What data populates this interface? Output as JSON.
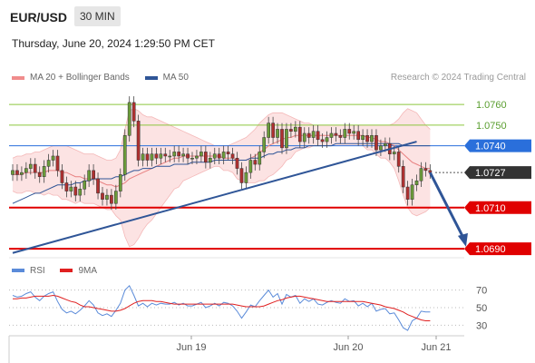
{
  "header": {
    "pair": "EUR/USD",
    "timeframe": "30 MIN",
    "timestamp": "Thursday, June 20, 2024 1:29:50 PM CET"
  },
  "legend": {
    "ma20_label": "MA 20 + Bollinger Bands",
    "ma50_label": "MA 50",
    "ma20_color": "#f08c8c",
    "ma50_color": "#2f5597",
    "credit": "Research © 2024 Trading Central",
    "rsi_label": "RSI",
    "ma9_label": "9MA",
    "rsi_color": "#5b8bd9",
    "ma9_color": "#e02020"
  },
  "chart_data": {
    "type": "line",
    "instrument": "EUR/USD",
    "timeframe": "30 MIN",
    "price_axis": {
      "ylim": [
        1.0687,
        1.0768
      ]
    },
    "levels": [
      {
        "value": 1.076,
        "label": "1.0760",
        "kind": "resistance",
        "color": "#8cc63f"
      },
      {
        "value": 1.075,
        "label": "1.0750",
        "kind": "resistance",
        "color": "#8cc63f"
      },
      {
        "value": 1.074,
        "label": "1.0740",
        "kind": "pivot",
        "color": "#2a6fdb"
      },
      {
        "value": 1.0727,
        "label": "1.0727",
        "kind": "last",
        "color": "#333333"
      },
      {
        "value": 1.071,
        "label": "1.0710",
        "kind": "support",
        "color": "#e00000"
      },
      {
        "value": 1.069,
        "label": "1.0690",
        "kind": "support",
        "color": "#e00000"
      }
    ],
    "x_labels": [
      "Jun 19",
      "Jun 20",
      "Jun 21"
    ],
    "close_series": [
      1.0728,
      1.0726,
      1.0727,
      1.0729,
      1.0731,
      1.0727,
      1.0725,
      1.073,
      1.0733,
      1.0735,
      1.0728,
      1.0722,
      1.0718,
      1.072,
      1.0716,
      1.0719,
      1.0723,
      1.0728,
      1.0724,
      1.0717,
      1.0714,
      1.0716,
      1.0712,
      1.0718,
      1.0726,
      1.0745,
      1.0761,
      1.0752,
      1.0733,
      1.0736,
      1.0733,
      1.0736,
      1.0734,
      1.0736,
      1.0735,
      1.0735,
      1.0737,
      1.0735,
      1.0736,
      1.0734,
      1.0734,
      1.0735,
      1.0737,
      1.0732,
      1.0734,
      1.0736,
      1.0734,
      1.0737,
      1.0736,
      1.0734,
      1.0729,
      1.0722,
      1.0727,
      1.0733,
      1.0731,
      1.0737,
      1.0744,
      1.0751,
      1.0744,
      1.0748,
      1.0739,
      1.0748,
      1.0747,
      1.0749,
      1.0742,
      1.0746,
      1.0744,
      1.0747,
      1.0743,
      1.0742,
      1.0744,
      1.0746,
      1.0745,
      1.0744,
      1.0748,
      1.0746,
      1.0747,
      1.0743,
      1.0745,
      1.0742,
      1.0745,
      1.0738,
      1.074,
      1.0741,
      1.0736,
      1.0737,
      1.073,
      1.072,
      1.0714,
      1.0721,
      1.0723,
      1.0729,
      1.0728,
      1.0727
    ],
    "ma20": [
      1.0726,
      1.0726,
      1.0726,
      1.0727,
      1.0727,
      1.0727,
      1.0727,
      1.0727,
      1.0728,
      1.0728,
      1.0728,
      1.0727,
      1.0727,
      1.0726,
      1.0725,
      1.0725,
      1.0724,
      1.0724,
      1.0724,
      1.0723,
      1.0722,
      1.0721,
      1.0721,
      1.072,
      1.0721,
      1.0722,
      1.0724,
      1.0725,
      1.0726,
      1.0727,
      1.0728,
      1.0729,
      1.073,
      1.0731,
      1.0732,
      1.0733,
      1.0734,
      1.0734,
      1.0735,
      1.0735,
      1.0735,
      1.0735,
      1.0735,
      1.0735,
      1.0735,
      1.0735,
      1.0735,
      1.0734,
      1.0734,
      1.0734,
      1.0733,
      1.0733,
      1.0733,
      1.0734,
      1.0735,
      1.0737,
      1.0738,
      1.074,
      1.0741,
      1.0742,
      1.0743,
      1.0744,
      1.0744,
      1.0745,
      1.0745,
      1.0745,
      1.0745,
      1.0745,
      1.0745,
      1.0745,
      1.0745,
      1.0745,
      1.0745,
      1.0745,
      1.0745,
      1.0745,
      1.0745,
      1.0745,
      1.0745,
      1.0744,
      1.0744,
      1.0743,
      1.0742,
      1.0742,
      1.0741,
      1.074,
      1.0738,
      1.0736,
      1.0734,
      1.0732,
      1.0731,
      1.073,
      1.0729,
      1.0729
    ],
    "bb_upper": [
      1.0734,
      1.0735,
      1.0735,
      1.0736,
      1.0736,
      1.0737,
      1.0737,
      1.0738,
      1.0739,
      1.074,
      1.074,
      1.074,
      1.074,
      1.0739,
      1.0738,
      1.0737,
      1.0736,
      1.0736,
      1.0736,
      1.0735,
      1.0734,
      1.0733,
      1.0733,
      1.0734,
      1.0738,
      1.0748,
      1.0757,
      1.0758,
      1.0757,
      1.0755,
      1.0754,
      1.0754,
      1.0753,
      1.0752,
      1.0751,
      1.075,
      1.0749,
      1.0748,
      1.0747,
      1.0746,
      1.0745,
      1.0744,
      1.0743,
      1.0742,
      1.0741,
      1.074,
      1.074,
      1.074,
      1.074,
      1.0741,
      1.0742,
      1.0743,
      1.0744,
      1.0746,
      1.0748,
      1.0751,
      1.0753,
      1.0755,
      1.0756,
      1.0756,
      1.0756,
      1.0755,
      1.0754,
      1.0753,
      1.0752,
      1.0751,
      1.0751,
      1.075,
      1.075,
      1.075,
      1.075,
      1.075,
      1.075,
      1.075,
      1.075,
      1.075,
      1.075,
      1.075,
      1.075,
      1.075,
      1.075,
      1.075,
      1.075,
      1.075,
      1.075,
      1.0751,
      1.0753,
      1.0756,
      1.0758,
      1.0757,
      1.0756,
      1.0753,
      1.075,
      1.0748
    ],
    "bb_lower": [
      1.0718,
      1.0717,
      1.0717,
      1.0718,
      1.0718,
      1.0717,
      1.0717,
      1.0716,
      1.0717,
      1.0716,
      1.0716,
      1.0714,
      1.0714,
      1.0713,
      1.0712,
      1.0713,
      1.0712,
      1.0712,
      1.0712,
      1.0711,
      1.071,
      1.0709,
      1.0709,
      1.0706,
      1.0704,
      1.0696,
      1.0691,
      1.0692,
      1.0695,
      1.0699,
      1.0702,
      1.0704,
      1.0707,
      1.071,
      1.0713,
      1.0716,
      1.0719,
      1.072,
      1.0723,
      1.0724,
      1.0725,
      1.0726,
      1.0727,
      1.0728,
      1.0729,
      1.073,
      1.073,
      1.0728,
      1.0728,
      1.0727,
      1.0724,
      1.0723,
      1.0722,
      1.0722,
      1.0722,
      1.0723,
      1.0723,
      1.0725,
      1.0726,
      1.0728,
      1.073,
      1.0733,
      1.0734,
      1.0737,
      1.0738,
      1.0739,
      1.0739,
      1.074,
      1.074,
      1.074,
      1.074,
      1.074,
      1.074,
      1.074,
      1.074,
      1.074,
      1.074,
      1.074,
      1.074,
      1.0738,
      1.0738,
      1.0736,
      1.0734,
      1.0734,
      1.0732,
      1.0729,
      1.0723,
      1.0716,
      1.071,
      1.0707,
      1.0706,
      1.0707,
      1.0708,
      1.071
    ],
    "ma50": [
      1.0712,
      1.0713,
      1.0714,
      1.0715,
      1.0716,
      1.0717,
      1.0717,
      1.0718,
      1.0719,
      1.072,
      1.0721,
      1.0721,
      1.0721,
      1.0721,
      1.0722,
      1.0722,
      1.0723,
      1.0723,
      1.0724,
      1.0724,
      1.0724,
      1.0724,
      1.0724,
      1.0725,
      1.0725,
      1.0726,
      1.0727,
      1.0728,
      1.0728,
      1.0729,
      1.0729,
      1.0729,
      1.073,
      1.073,
      1.073,
      1.073,
      1.0731,
      1.0731,
      1.0731,
      1.0731,
      1.0732,
      1.0732,
      1.0732,
      1.0732,
      1.0732,
      1.0733,
      1.0733,
      1.0733,
      1.0733,
      1.0733,
      1.0733,
      1.0733,
      1.0733,
      1.0734,
      1.0734,
      1.0734,
      1.0735,
      1.0736,
      1.0736,
      1.0737,
      1.0737,
      1.0738,
      1.0738,
      1.0739,
      1.0739,
      1.0739,
      1.074,
      1.074,
      1.074,
      1.074,
      1.074,
      1.074,
      1.0741,
      1.0741,
      1.0741,
      1.0741,
      1.0741,
      1.0741,
      1.0741,
      1.0741,
      1.0741,
      1.0741,
      1.0741,
      1.0741,
      1.0741,
      1.0741,
      1.0741,
      1.074,
      1.074,
      1.074,
      1.074,
      1.074,
      1.074,
      1.074
    ],
    "trendline": {
      "from": {
        "index": 0,
        "value": 1.0688
      },
      "to": {
        "index": 90,
        "value": 1.0742
      }
    },
    "forecast_arrow": {
      "from": {
        "index": 93,
        "value": 1.0727
      },
      "to": {
        "index": 101,
        "value": 1.0691
      }
    },
    "rsi_panel": {
      "ylim": [
        20,
        80
      ],
      "levels": [
        70,
        50,
        30
      ],
      "rsi": [
        64,
        62,
        63,
        66,
        68,
        62,
        58,
        63,
        66,
        68,
        57,
        48,
        44,
        46,
        43,
        47,
        52,
        58,
        53,
        44,
        41,
        43,
        40,
        47,
        55,
        70,
        75,
        64,
        52,
        55,
        51,
        55,
        53,
        55,
        54,
        54,
        56,
        53,
        55,
        52,
        52,
        54,
        56,
        50,
        52,
        55,
        52,
        56,
        55,
        52,
        46,
        38,
        45,
        53,
        51,
        58,
        64,
        70,
        62,
        66,
        54,
        65,
        62,
        64,
        55,
        60,
        57,
        60,
        54,
        53,
        56,
        58,
        56,
        55,
        60,
        57,
        58,
        52,
        55,
        51,
        55,
        46,
        48,
        49,
        43,
        44,
        36,
        27,
        24,
        35,
        38,
        46,
        45,
        45
      ],
      "ma9": [
        60,
        60,
        61,
        61,
        62,
        63,
        63,
        63,
        63,
        64,
        63,
        61,
        59,
        57,
        56,
        53,
        51,
        51,
        50,
        49,
        48,
        47,
        46,
        46,
        47,
        49,
        52,
        55,
        57,
        58,
        58,
        58,
        57,
        57,
        56,
        55,
        54,
        54,
        54,
        54,
        54,
        54,
        54,
        54,
        54,
        54,
        54,
        54,
        54,
        54,
        53,
        52,
        51,
        51,
        51,
        51,
        52,
        54,
        56,
        58,
        59,
        61,
        62,
        63,
        63,
        62,
        61,
        60,
        59,
        58,
        57,
        57,
        57,
        57,
        57,
        57,
        57,
        57,
        57,
        56,
        55,
        54,
        53,
        51,
        50,
        49,
        47,
        45,
        42,
        40,
        38,
        36,
        35,
        35
      ]
    }
  }
}
